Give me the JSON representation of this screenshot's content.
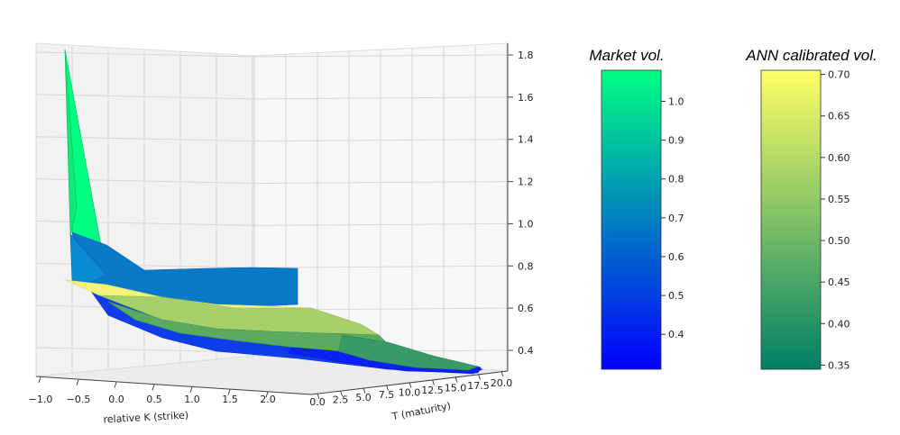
{
  "chart_data": [
    {
      "type": "surface",
      "title": "",
      "xlabel": "relative K (strike)",
      "ylabel": "T (maturity)",
      "zlabel": "",
      "x_ticks": [
        "−1.0",
        "−0.5",
        "0.0",
        "0.5",
        "1.0",
        "1.5",
        "2.0"
      ],
      "y_ticks": [
        "0.0",
        "2.5",
        "5.0",
        "7.5",
        "10.0",
        "12.5",
        "15.0",
        "17.5",
        "20.0"
      ],
      "z_ticks": [
        "0.4",
        "0.6",
        "0.8",
        "1.0",
        "1.2",
        "1.4",
        "1.6",
        "1.8"
      ],
      "x_range": [
        -1.0,
        2.0
      ],
      "y_range": [
        0.0,
        20.0
      ],
      "z_range": [
        0.3,
        1.85
      ],
      "grid": true,
      "series": [
        {
          "name": "Market vol.",
          "colormap": "winter",
          "points": [
            {
              "x": -0.9,
              "y": 0.0,
              "z": 1.82
            },
            {
              "x": -0.5,
              "y": 0.0,
              "z": 0.82
            },
            {
              "x": 0.0,
              "y": 0.0,
              "z": 0.62
            },
            {
              "x": 0.5,
              "y": 0.0,
              "z": 0.5
            },
            {
              "x": 0.0,
              "y": 10.0,
              "z": 0.72
            },
            {
              "x": 0.0,
              "y": 20.0,
              "z": 0.7
            },
            {
              "x": 2.0,
              "y": 20.0,
              "z": 0.28
            }
          ]
        },
        {
          "name": "ANN calibrated vol.",
          "colormap": "summer",
          "points": [
            {
              "x": -0.9,
              "y": 0.0,
              "z": 0.7
            },
            {
              "x": 0.0,
              "y": 0.0,
              "z": 0.58
            },
            {
              "x": 0.5,
              "y": 5.0,
              "z": 0.6
            },
            {
              "x": 1.0,
              "y": 10.0,
              "z": 0.62
            },
            {
              "x": 1.5,
              "y": 15.0,
              "z": 0.48
            },
            {
              "x": 2.0,
              "y": 20.0,
              "z": 0.33
            }
          ]
        }
      ]
    },
    {
      "type": "colorbar",
      "title": "Market vol.",
      "colormap": "winter",
      "range": [
        0.31,
        1.08
      ],
      "ticks": [
        "0.4",
        "0.5",
        "0.6",
        "0.7",
        "0.8",
        "0.9",
        "1.0"
      ],
      "tick_values": [
        0.4,
        0.5,
        0.6,
        0.7,
        0.8,
        0.9,
        1.0
      ]
    },
    {
      "type": "colorbar",
      "title": "ANN calibrated vol.",
      "colormap": "summer",
      "range": [
        0.345,
        0.705
      ],
      "ticks": [
        "0.35",
        "0.40",
        "0.45",
        "0.50",
        "0.55",
        "0.60",
        "0.65",
        "0.70"
      ],
      "tick_values": [
        0.35,
        0.4,
        0.45,
        0.5,
        0.55,
        0.6,
        0.65,
        0.7
      ]
    }
  ]
}
